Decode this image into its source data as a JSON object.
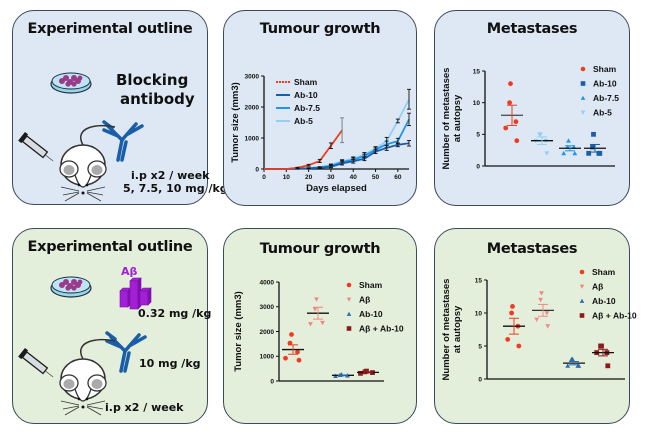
{
  "top_row": {
    "outline": {
      "title": "Experimental outline",
      "treatment_line1": "Blocking",
      "treatment_line2": "antibody",
      "schedule": "i.p x2 / week",
      "doses": "5, 7.5, 10 mg /kg",
      "icons": [
        "petri-dish-icon",
        "mouse-icon",
        "syringe-icon",
        "antibody-icon"
      ]
    },
    "tumour": {
      "title": "Tumour growth"
    },
    "metastases": {
      "title": "Metastases"
    }
  },
  "bottom_row": {
    "outline": {
      "title": "Experimental outline",
      "abeta_label": "Aβ",
      "abeta_dose": "0.32 mg /kg",
      "antibody_dose": "10 mg /kg",
      "schedule": "i.p x2 / week",
      "icons": [
        "petri-dish-icon",
        "abeta-aggregate-icon",
        "mouse-icon",
        "syringe-icon",
        "antibody-icon"
      ]
    },
    "tumour": {
      "title": "Tumour growth"
    },
    "metastases": {
      "title": "Metastases"
    }
  },
  "colors": {
    "top_panel_bg": "#dde8f4",
    "bottom_panel_bg": "#e3eedb",
    "sham": "#f03c1e",
    "ab10": "#1a5ea8",
    "ab75": "#2196e8",
    "ab5": "#8fd0f7",
    "abeta": "#f08a80",
    "ab10_bottom": "#2e6bb0",
    "abeta_ab10": "#8b1a1a",
    "abeta_icon": "#a21fd6"
  },
  "chart_data": [
    {
      "id": "top-tumour",
      "type": "line",
      "title": "Tumour growth",
      "xlabel": "Days elapsed",
      "ylabel": "Tumor size (mm3)",
      "xlim": [
        0,
        65
      ],
      "ylim": [
        0,
        3000
      ],
      "xticks": [
        0,
        10,
        20,
        30,
        40,
        50,
        60
      ],
      "yticks": [
        0,
        1000,
        2000,
        3000
      ],
      "legend": "top-left",
      "series": [
        {
          "name": "Sham",
          "color": "#f03c1e",
          "x": [
            0,
            10,
            15,
            20,
            25,
            30,
            35
          ],
          "y": [
            0,
            0,
            40,
            120,
            260,
            750,
            1250
          ],
          "err": [
            0,
            0,
            15,
            30,
            50,
            90,
            400
          ]
        },
        {
          "name": "Ab-10",
          "color": "#1a5ea8",
          "x": [
            0,
            10,
            15,
            20,
            25,
            30,
            35,
            40,
            45,
            50,
            55,
            60,
            65
          ],
          "y": [
            0,
            0,
            10,
            20,
            40,
            70,
            180,
            250,
            330,
            560,
            680,
            780,
            830
          ],
          "err": [
            0,
            0,
            5,
            10,
            15,
            30,
            50,
            60,
            60,
            60,
            80,
            60,
            90
          ]
        },
        {
          "name": "Ab-7.5",
          "color": "#2196e8",
          "x": [
            0,
            10,
            15,
            20,
            25,
            30,
            35,
            40,
            45,
            50,
            55,
            60,
            65
          ],
          "y": [
            0,
            0,
            10,
            25,
            50,
            100,
            220,
            300,
            420,
            620,
            800,
            900,
            1600
          ],
          "err": [
            0,
            0,
            5,
            10,
            15,
            30,
            50,
            60,
            60,
            60,
            100,
            90,
            200
          ]
        },
        {
          "name": "Ab-5",
          "color": "#8fd0f7",
          "x": [
            0,
            10,
            15,
            20,
            25,
            30,
            35,
            40,
            45,
            50,
            55,
            60,
            65
          ],
          "y": [
            0,
            0,
            10,
            30,
            60,
            130,
            250,
            330,
            470,
            660,
            900,
            1550,
            2250
          ],
          "err": [
            0,
            0,
            5,
            10,
            15,
            30,
            50,
            60,
            60,
            60,
            120,
            60,
            320
          ]
        }
      ]
    },
    {
      "id": "top-metastases",
      "type": "scatter",
      "title": "Metastases",
      "ylabel": "Number of metastases at autopsy",
      "ylim": [
        0,
        15
      ],
      "yticks": [
        0,
        5,
        10,
        15
      ],
      "legend": "top-right",
      "groups": [
        {
          "name": "Sham",
          "marker": "circle",
          "color": "#f03c1e",
          "values": [
            13,
            10,
            7,
            6,
            4
          ],
          "mean": 8,
          "sem": 1.6
        },
        {
          "name": "Ab-5",
          "marker": "triangle-down",
          "color": "#8fd0f7",
          "values": [
            5,
            5,
            4,
            4,
            2
          ],
          "mean": 4,
          "sem": 0.6
        },
        {
          "name": "Ab-7.5",
          "marker": "triangle-up",
          "color": "#2196e8",
          "values": [
            4,
            3,
            3,
            2,
            2
          ],
          "mean": 2.8,
          "sem": 0.4
        },
        {
          "name": "Ab-10",
          "marker": "square",
          "color": "#1a5ea8",
          "values": [
            5,
            3,
            2,
            2,
            2
          ],
          "mean": 2.8,
          "sem": 0.6
        }
      ],
      "legend_order": [
        "Sham",
        "Ab-10",
        "Ab-7.5",
        "Ab-5"
      ]
    },
    {
      "id": "bottom-tumour",
      "type": "scatter",
      "title": "Tumour growth",
      "ylabel": "Tumor size (mm3)",
      "ylim": [
        0,
        4000
      ],
      "yticks": [
        0,
        1000,
        2000,
        3000,
        4000
      ],
      "legend": "top-right",
      "groups": [
        {
          "name": "Sham",
          "marker": "circle",
          "color": "#f03c1e",
          "values": [
            1880,
            1530,
            1170,
            920,
            840
          ],
          "mean": 1270,
          "sem": 190
        },
        {
          "name": "Aβ",
          "marker": "triangle-down",
          "color": "#f08a80",
          "values": [
            3300,
            2900,
            2350,
            2300
          ],
          "mean": 2740,
          "sem": 240
        },
        {
          "name": "Ab-10",
          "marker": "triangle-up",
          "color": "#2e6bb0",
          "values": [
            260,
            240,
            220,
            200
          ],
          "mean": 230,
          "sem": 15
        },
        {
          "name": "Aβ + Ab-10",
          "marker": "square",
          "color": "#8b1a1a",
          "values": [
            400,
            370,
            340,
            310
          ],
          "mean": 350,
          "sem": 20
        }
      ]
    },
    {
      "id": "bottom-metastases",
      "type": "scatter",
      "title": "Metastases",
      "ylabel": "Number of metastases at autopsy",
      "ylim": [
        0,
        15
      ],
      "yticks": [
        0,
        5,
        10,
        15
      ],
      "legend": "top-right",
      "groups": [
        {
          "name": "Sham",
          "marker": "circle",
          "color": "#f03c1e",
          "values": [
            11,
            10,
            8,
            6,
            5
          ],
          "mean": 8,
          "sem": 1.2
        },
        {
          "name": "Aβ",
          "marker": "triangle-down",
          "color": "#f08a80",
          "values": [
            13,
            12,
            10,
            9,
            8
          ],
          "mean": 10.4,
          "sem": 0.9
        },
        {
          "name": "Ab-10",
          "marker": "triangle-up",
          "color": "#2e6bb0",
          "values": [
            3,
            3,
            2,
            2,
            2
          ],
          "mean": 2.4,
          "sem": 0.25
        },
        {
          "name": "Aβ + Ab-10",
          "marker": "square",
          "color": "#8b1a1a",
          "values": [
            5,
            5,
            4,
            4,
            2
          ],
          "mean": 4,
          "sem": 0.5
        }
      ]
    }
  ]
}
